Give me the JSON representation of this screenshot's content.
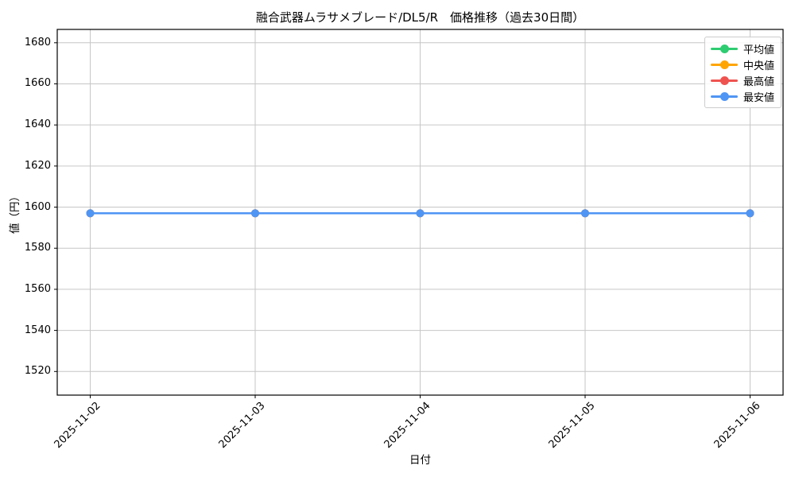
{
  "chart_data": {
    "type": "line",
    "title": "融合武器ムラサメブレード/DL5/R　価格推移（過去30日間）",
    "xlabel": "日付",
    "ylabel": "値（円）",
    "categories": [
      "2025-11-02",
      "2025-11-03",
      "2025-11-04",
      "2025-11-05",
      "2025-11-06"
    ],
    "series": [
      {
        "name": "平均値",
        "color": "#2ecc71",
        "values": [
          1597,
          1597,
          1597,
          1597,
          1597
        ]
      },
      {
        "name": "中央値",
        "color": "#ffa502",
        "values": [
          1597,
          1597,
          1597,
          1597,
          1597
        ]
      },
      {
        "name": "最高値",
        "color": "#ef5350",
        "values": [
          1597,
          1597,
          1597,
          1597,
          1597
        ]
      },
      {
        "name": "最安値",
        "color": "#4f95f4",
        "values": [
          1597,
          1597,
          1597,
          1597,
          1597
        ]
      }
    ],
    "yticks": [
      1520,
      1540,
      1560,
      1580,
      1600,
      1620,
      1640,
      1660,
      1680
    ],
    "ylim": [
      1508.5,
      1686.5
    ],
    "grid": true,
    "grid_color": "#c6c6c6",
    "spine_color": "#000000",
    "legend_position": "upper right",
    "x_tick_rotation": 45,
    "marker": "circle"
  }
}
